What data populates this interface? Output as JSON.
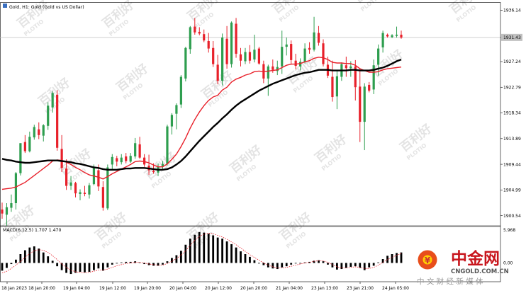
{
  "window": {
    "symbol_caption": "Gold, H1:  Gold (Gold vs US Dollar)",
    "indicator_caption": "MACD(6,12,5) 1.707 1.470"
  },
  "branding": {
    "watermark_text": "百利好",
    "watermark_sub": "PLOTIO",
    "logo_main": "中金网",
    "logo_url": "CNGOLD.COM.CN",
    "logo_tagline": "中 文 财 经 新 媒 体"
  },
  "colors": {
    "bull": "#2e9e4f",
    "bear": "#e8202a",
    "ma_fast": "#e8202a",
    "ma_slow": "#000000",
    "macd_hist": "#000000",
    "macd_signal": "#e8202a",
    "price_line": "#c0c0c0"
  },
  "chart_data": {
    "type": "candlestick",
    "timeframe": "H1",
    "current_price": 1931.43,
    "current_price_label": "1931.43",
    "y_ticks": [
      "1936.14",
      "1931.43",
      "1927.24",
      "1922.79",
      "1918.34",
      "1913.89",
      "1909.44",
      "1904.99",
      "1900.54"
    ],
    "macd_y_ticks": [
      "5.968",
      "0.00"
    ],
    "x_labels": [
      "18 Jan 2023",
      "18 Jan 20:00",
      "19 Jan 04:00",
      "19 Jan 12:00",
      "19 Jan 20:00",
      "20 Jan 04:00",
      "20 Jan 12:00",
      "20 Jan 20:00",
      "21 Jan 04:00",
      "23 Jan 13:00",
      "23 Jan 21:00",
      "24 Jan 05:00"
    ],
    "ylim": [
      1898.9,
      1937.3
    ],
    "macd_ylim": [
      -3.4,
      6.6
    ],
    "candles": [
      {
        "o": 1901.6,
        "h": 1902.8,
        "l": 1900.0,
        "c": 1900.9
      },
      {
        "o": 1900.7,
        "h": 1902.7,
        "l": 1898.8,
        "c": 1902.0
      },
      {
        "o": 1901.9,
        "h": 1904.2,
        "l": 1901.2,
        "c": 1902.7
      },
      {
        "o": 1902.7,
        "h": 1908.1,
        "l": 1901.6,
        "c": 1907.9
      },
      {
        "o": 1907.9,
        "h": 1913.1,
        "l": 1907.5,
        "c": 1913.1
      },
      {
        "o": 1913.3,
        "h": 1914.5,
        "l": 1911.4,
        "c": 1911.7
      },
      {
        "o": 1911.7,
        "h": 1915.1,
        "l": 1911.5,
        "c": 1914.2
      },
      {
        "o": 1914.1,
        "h": 1916.3,
        "l": 1913.7,
        "c": 1915.9
      },
      {
        "o": 1915.5,
        "h": 1916.7,
        "l": 1913.8,
        "c": 1914.5
      },
      {
        "o": 1914.4,
        "h": 1916.4,
        "l": 1913.4,
        "c": 1916.2
      },
      {
        "o": 1916.1,
        "h": 1920.2,
        "l": 1915.4,
        "c": 1919.6
      },
      {
        "o": 1919.3,
        "h": 1922.1,
        "l": 1918.4,
        "c": 1921.8
      },
      {
        "o": 1921.5,
        "h": 1922.3,
        "l": 1911.8,
        "c": 1912.3
      },
      {
        "o": 1912.1,
        "h": 1914.5,
        "l": 1908.1,
        "c": 1908.8
      },
      {
        "o": 1908.7,
        "h": 1910.3,
        "l": 1905.0,
        "c": 1905.7
      },
      {
        "o": 1905.7,
        "h": 1907.4,
        "l": 1905.0,
        "c": 1906.3
      },
      {
        "o": 1906.2,
        "h": 1906.4,
        "l": 1903.7,
        "c": 1904.4
      },
      {
        "o": 1904.3,
        "h": 1905.1,
        "l": 1903.2,
        "c": 1904.6
      },
      {
        "o": 1904.5,
        "h": 1905.7,
        "l": 1903.9,
        "c": 1904.3
      },
      {
        "o": 1904.2,
        "h": 1906.2,
        "l": 1903.5,
        "c": 1905.8
      },
      {
        "o": 1906.0,
        "h": 1909.4,
        "l": 1905.8,
        "c": 1908.9
      },
      {
        "o": 1908.4,
        "h": 1909.4,
        "l": 1904.8,
        "c": 1905.6
      },
      {
        "o": 1905.5,
        "h": 1906.5,
        "l": 1901.4,
        "c": 1901.9
      },
      {
        "o": 1901.8,
        "h": 1909.4,
        "l": 1901.5,
        "c": 1908.9
      },
      {
        "o": 1909.4,
        "h": 1911.2,
        "l": 1908.6,
        "c": 1910.7
      },
      {
        "o": 1910.5,
        "h": 1910.9,
        "l": 1909.1,
        "c": 1909.9
      },
      {
        "o": 1909.8,
        "h": 1911.2,
        "l": 1909.4,
        "c": 1910.6
      },
      {
        "o": 1910.8,
        "h": 1911.4,
        "l": 1909.6,
        "c": 1910.0
      },
      {
        "o": 1909.9,
        "h": 1911.4,
        "l": 1909.7,
        "c": 1910.9
      },
      {
        "o": 1910.8,
        "h": 1914.0,
        "l": 1910.4,
        "c": 1913.1
      },
      {
        "o": 1912.9,
        "h": 1914.2,
        "l": 1910.4,
        "c": 1910.6
      },
      {
        "o": 1910.6,
        "h": 1911.2,
        "l": 1909.0,
        "c": 1909.4
      },
      {
        "o": 1909.2,
        "h": 1911.1,
        "l": 1907.6,
        "c": 1908.4
      },
      {
        "o": 1908.3,
        "h": 1909.6,
        "l": 1907.8,
        "c": 1908.1
      },
      {
        "o": 1908.0,
        "h": 1909.6,
        "l": 1907.4,
        "c": 1909.0
      },
      {
        "o": 1909.1,
        "h": 1910.0,
        "l": 1908.6,
        "c": 1909.5
      },
      {
        "o": 1909.5,
        "h": 1916.3,
        "l": 1909.2,
        "c": 1916.0
      },
      {
        "o": 1916.0,
        "h": 1918.3,
        "l": 1914.6,
        "c": 1918.0
      },
      {
        "o": 1918.2,
        "h": 1920.0,
        "l": 1915.5,
        "c": 1919.7
      },
      {
        "o": 1919.8,
        "h": 1924.9,
        "l": 1919.2,
        "c": 1924.6
      },
      {
        "o": 1924.3,
        "h": 1929.8,
        "l": 1923.8,
        "c": 1929.6
      },
      {
        "o": 1929.4,
        "h": 1933.4,
        "l": 1928.6,
        "c": 1933.2
      },
      {
        "o": 1933.3,
        "h": 1934.8,
        "l": 1931.9,
        "c": 1932.3
      },
      {
        "o": 1932.4,
        "h": 1933.2,
        "l": 1931.8,
        "c": 1932.1
      },
      {
        "o": 1932.0,
        "h": 1932.8,
        "l": 1930.6,
        "c": 1930.9
      },
      {
        "o": 1930.8,
        "h": 1932.2,
        "l": 1928.8,
        "c": 1929.5
      },
      {
        "o": 1929.6,
        "h": 1930.8,
        "l": 1926.3,
        "c": 1926.8
      },
      {
        "o": 1926.7,
        "h": 1928.4,
        "l": 1923.3,
        "c": 1923.9
      },
      {
        "o": 1923.9,
        "h": 1932.1,
        "l": 1923.1,
        "c": 1931.4
      },
      {
        "o": 1931.2,
        "h": 1933.4,
        "l": 1926.0,
        "c": 1926.8
      },
      {
        "o": 1926.8,
        "h": 1934.2,
        "l": 1926.2,
        "c": 1934.0
      },
      {
        "o": 1933.8,
        "h": 1934.8,
        "l": 1927.9,
        "c": 1928.6
      },
      {
        "o": 1928.5,
        "h": 1929.6,
        "l": 1926.4,
        "c": 1927.4
      },
      {
        "o": 1927.3,
        "h": 1929.6,
        "l": 1926.8,
        "c": 1928.9
      },
      {
        "o": 1928.9,
        "h": 1930.1,
        "l": 1926.9,
        "c": 1927.4
      },
      {
        "o": 1927.6,
        "h": 1931.9,
        "l": 1927.1,
        "c": 1929.3
      },
      {
        "o": 1929.5,
        "h": 1929.8,
        "l": 1926.7,
        "c": 1926.9
      },
      {
        "o": 1926.8,
        "h": 1927.4,
        "l": 1923.5,
        "c": 1924.3
      },
      {
        "o": 1924.3,
        "h": 1926.7,
        "l": 1921.3,
        "c": 1926.4
      },
      {
        "o": 1926.4,
        "h": 1927.6,
        "l": 1925.3,
        "c": 1925.8
      },
      {
        "o": 1925.6,
        "h": 1927.4,
        "l": 1924.9,
        "c": 1926.3
      },
      {
        "o": 1926.4,
        "h": 1932.6,
        "l": 1925.1,
        "c": 1929.8
      },
      {
        "o": 1929.8,
        "h": 1931.4,
        "l": 1928.3,
        "c": 1930.2
      },
      {
        "o": 1930.3,
        "h": 1930.9,
        "l": 1926.7,
        "c": 1927.5
      },
      {
        "o": 1927.4,
        "h": 1928.6,
        "l": 1925.9,
        "c": 1926.5
      },
      {
        "o": 1926.4,
        "h": 1927.8,
        "l": 1925.7,
        "c": 1927.2
      },
      {
        "o": 1927.2,
        "h": 1930.4,
        "l": 1926.9,
        "c": 1929.5
      },
      {
        "o": 1929.6,
        "h": 1930.6,
        "l": 1928.6,
        "c": 1929.3
      },
      {
        "o": 1929.3,
        "h": 1935.0,
        "l": 1929.0,
        "c": 1932.3
      },
      {
        "o": 1932.2,
        "h": 1933.4,
        "l": 1930.0,
        "c": 1930.5
      },
      {
        "o": 1930.4,
        "h": 1931.1,
        "l": 1926.4,
        "c": 1926.8
      },
      {
        "o": 1926.7,
        "h": 1928.1,
        "l": 1924.4,
        "c": 1924.8
      },
      {
        "o": 1924.6,
        "h": 1927.4,
        "l": 1920.3,
        "c": 1921.1
      },
      {
        "o": 1921.2,
        "h": 1925.6,
        "l": 1919.0,
        "c": 1924.7
      },
      {
        "o": 1924.6,
        "h": 1927.1,
        "l": 1923.9,
        "c": 1926.8
      },
      {
        "o": 1926.6,
        "h": 1928.1,
        "l": 1924.6,
        "c": 1926.1
      },
      {
        "o": 1926.1,
        "h": 1927.3,
        "l": 1924.6,
        "c": 1926.4
      },
      {
        "o": 1926.4,
        "h": 1927.5,
        "l": 1920.5,
        "c": 1922.8
      },
      {
        "o": 1922.9,
        "h": 1926.1,
        "l": 1913.3,
        "c": 1916.8
      },
      {
        "o": 1916.8,
        "h": 1923.5,
        "l": 1911.9,
        "c": 1922.9
      },
      {
        "o": 1923.2,
        "h": 1923.7,
        "l": 1921.9,
        "c": 1922.2
      },
      {
        "o": 1922.4,
        "h": 1927.6,
        "l": 1921.6,
        "c": 1926.6
      },
      {
        "o": 1926.7,
        "h": 1930.2,
        "l": 1924.8,
        "c": 1929.5
      },
      {
        "o": 1929.7,
        "h": 1932.6,
        "l": 1928.8,
        "c": 1932.2
      },
      {
        "o": 1931.9,
        "h": 1932.1,
        "l": 1931.4,
        "c": 1931.6
      },
      {
        "o": 1931.5,
        "h": 1932.0,
        "l": 1931.3,
        "c": 1931.8
      },
      {
        "o": 1931.7,
        "h": 1933.3,
        "l": 1931.4,
        "c": 1931.9
      },
      {
        "o": 1931.9,
        "h": 1932.6,
        "l": 1931.2,
        "c": 1931.4
      }
    ],
    "ma_fast": [
      1905.1,
      1905.2,
      1905.3,
      1905.5,
      1905.9,
      1906.3,
      1906.9,
      1907.5,
      1908.1,
      1908.7,
      1909.3,
      1910.0,
      1910.2,
      1910.1,
      1909.8,
      1909.4,
      1908.9,
      1908.5,
      1908.0,
      1907.6,
      1907.4,
      1907.2,
      1906.9,
      1907.3,
      1907.8,
      1908.2,
      1908.6,
      1909.0,
      1909.4,
      1909.9,
      1910.0,
      1909.9,
      1909.7,
      1909.3,
      1909.0,
      1909.0,
      1909.5,
      1910.3,
      1911.2,
      1912.5,
      1914.0,
      1915.7,
      1917.2,
      1918.5,
      1919.6,
      1920.5,
      1921.1,
      1921.4,
      1922.3,
      1922.8,
      1923.7,
      1924.2,
      1924.5,
      1924.9,
      1925.1,
      1925.5,
      1925.6,
      1925.5,
      1925.6,
      1925.7,
      1925.8,
      1926.2,
      1926.6,
      1926.8,
      1926.8,
      1926.9,
      1927.2,
      1927.4,
      1927.8,
      1928.0,
      1927.9,
      1927.6,
      1927.1,
      1927.0,
      1927.0,
      1926.9,
      1926.9,
      1926.6,
      1926.0,
      1925.7,
      1925.4,
      1925.4,
      1925.5,
      1925.8,
      1926.0,
      1926.1,
      1926.2,
      1926.3
    ],
    "ma_slow": [
      1910.4,
      1910.2,
      1910.1,
      1909.9,
      1909.8,
      1909.7,
      1909.7,
      1909.8,
      1909.9,
      1910.0,
      1910.1,
      1910.1,
      1910.1,
      1910.0,
      1909.9,
      1909.8,
      1909.6,
      1909.5,
      1909.3,
      1909.1,
      1908.9,
      1908.8,
      1908.6,
      1908.5,
      1908.5,
      1908.5,
      1908.6,
      1908.7,
      1908.7,
      1908.8,
      1908.8,
      1908.8,
      1908.7,
      1908.6,
      1908.5,
      1908.5,
      1908.6,
      1908.9,
      1909.4,
      1910.0,
      1910.8,
      1911.7,
      1912.6,
      1913.5,
      1914.3,
      1915.1,
      1915.9,
      1916.6,
      1917.4,
      1918.1,
      1918.9,
      1919.6,
      1920.2,
      1920.7,
      1921.2,
      1921.7,
      1922.2,
      1922.6,
      1923.0,
      1923.4,
      1923.7,
      1924.0,
      1924.3,
      1924.6,
      1924.9,
      1925.1,
      1925.3,
      1925.4,
      1925.6,
      1925.8,
      1925.8,
      1925.8,
      1925.7,
      1925.7,
      1925.7,
      1925.7,
      1925.8,
      1925.8,
      1925.7,
      1925.7,
      1925.7,
      1925.8,
      1926.0,
      1926.2,
      1926.5,
      1926.9,
      1927.3,
      1927.6
    ],
    "macd_hist": [
      -1.4,
      -0.9,
      -0.2,
      0.6,
      1.6,
      2.3,
      2.8,
      3.0,
      2.6,
      1.9,
      1.2,
      0.4,
      -0.6,
      -1.3,
      -1.8,
      -2.0,
      -1.8,
      -1.6,
      -1.7,
      -1.6,
      -1.3,
      -1.0,
      -1.4,
      -0.8,
      -0.3,
      0.0,
      0.1,
      0.2,
      0.2,
      0.3,
      0.1,
      -0.2,
      -0.4,
      -0.5,
      -0.5,
      -0.3,
      0.3,
      0.9,
      1.4,
      2.2,
      3.3,
      4.4,
      5.1,
      5.6,
      5.5,
      5.3,
      5.0,
      4.6,
      4.4,
      3.9,
      3.4,
      2.8,
      2.1,
      1.6,
      1.1,
      0.5,
      0.0,
      -0.4,
      -0.8,
      -1.0,
      -1.1,
      -0.8,
      -0.6,
      -0.3,
      -0.1,
      0.0,
      0.1,
      0.2,
      0.4,
      0.5,
      0.3,
      -0.3,
      -0.8,
      -1.2,
      -1.1,
      -0.9,
      -0.7,
      -0.6,
      -0.9,
      -1.3,
      -0.8,
      -0.5,
      0.1,
      0.7,
      1.3,
      1.6,
      1.8,
      1.9
    ],
    "macd_signal": [
      -1.8,
      -1.5,
      -1.0,
      -0.4,
      0.3,
      1.0,
      1.7,
      2.2,
      2.4,
      2.3,
      1.9,
      1.3,
      0.6,
      -0.2,
      -0.8,
      -1.3,
      -1.6,
      -1.7,
      -1.8,
      -1.7,
      -1.5,
      -1.3,
      -1.3,
      -1.1,
      -0.8,
      -0.5,
      -0.3,
      -0.1,
      0.0,
      0.1,
      0.1,
      0.0,
      -0.2,
      -0.3,
      -0.4,
      -0.4,
      -0.1,
      0.3,
      0.8,
      1.4,
      2.2,
      3.2,
      4.1,
      4.8,
      5.2,
      5.4,
      5.3,
      5.0,
      4.7,
      4.3,
      3.8,
      3.3,
      2.7,
      2.1,
      1.5,
      1.0,
      0.5,
      0.0,
      -0.4,
      -0.7,
      -0.9,
      -0.9,
      -0.8,
      -0.6,
      -0.4,
      -0.2,
      0.0,
      0.1,
      0.3,
      0.4,
      0.4,
      0.1,
      -0.3,
      -0.7,
      -0.9,
      -0.9,
      -0.8,
      -0.7,
      -0.8,
      -1.0,
      -1.0,
      -0.8,
      -0.4,
      0.1,
      0.6,
      1.0,
      1.4,
      1.7
    ]
  }
}
